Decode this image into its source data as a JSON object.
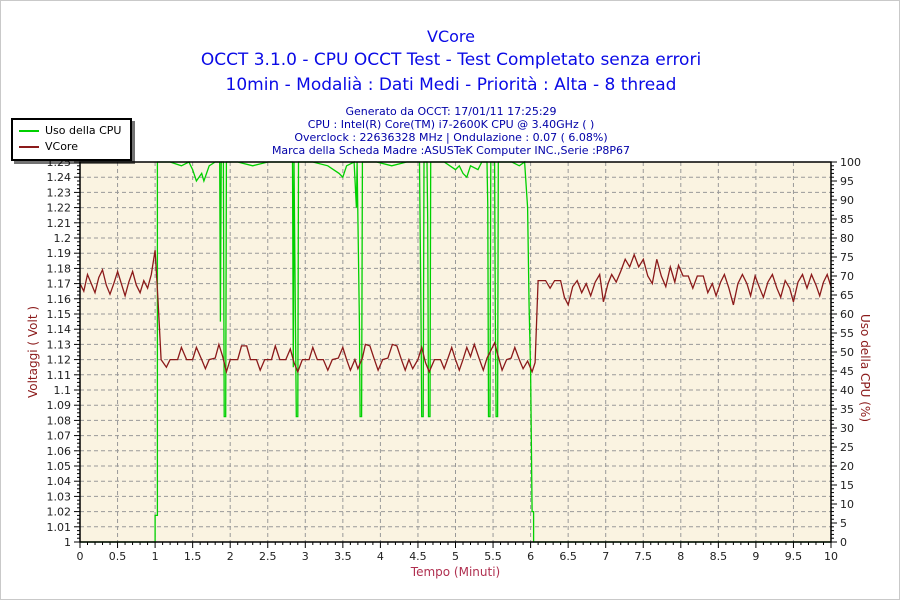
{
  "header": {
    "title": "VCore",
    "subtitle1": "OCCT 3.1.0 - CPU OCCT Test - Test Completato senza errori",
    "subtitle2": "10min - Modalià : Dati Medi - Priorità : Alta - 8 thread",
    "info_lines": [
      "Generato da OCCT: 17/01/11 17:25:29",
      "CPU : Intel(R) Core(TM) i7-2600K CPU @ 3.40GHz (  )",
      "Overclock : 22636328 MHz | Ondulazione : 0.07 ( 6.08%)",
      "Marca della Scheda Madre :ASUSTeK Computer INC.,Serie :P8P67"
    ]
  },
  "colors": {
    "title_blue": "#0a0ae6",
    "info_blue": "#0000a8",
    "plot_bg": "#faf3e1",
    "grid": "#999999",
    "axis": "#000000",
    "tick_text": "#202020",
    "axis_label_red": "#8b1a1a",
    "xlabel_red": "#b03050",
    "cpu_green": "#00d000",
    "vcore_red": "#8b1a1a"
  },
  "legend": {
    "items": [
      {
        "label": "Uso della CPU",
        "color": "#00d000"
      },
      {
        "label": "VCore",
        "color": "#8b1a1a"
      }
    ]
  },
  "chart_data": {
    "type": "line",
    "title": "VCore",
    "xlabel": "Tempo (Minuti)",
    "ylabel_left": "Voltaggi ( Volt )",
    "ylabel_right": "Uso della CPU (%)",
    "xlim": [
      0,
      10
    ],
    "ylim_left": [
      1.0,
      1.25
    ],
    "ylim_right": [
      0,
      100
    ],
    "x_major_step": 0.5,
    "x_minor_step": 0.1,
    "yleft_major_step": 0.01,
    "yright_major_step": 5,
    "grid": "dashed",
    "legend_position": "top-left",
    "series": [
      {
        "name": "Uso della CPU",
        "axis": "right",
        "color": "#00d000",
        "points": [
          [
            0,
            0
          ],
          [
            0.97,
            0
          ],
          [
            1.0,
            0
          ],
          [
            1.0,
            7
          ],
          [
            1.03,
            7
          ],
          [
            1.03,
            100
          ],
          [
            1.2,
            100
          ],
          [
            1.35,
            99
          ],
          [
            1.45,
            100
          ],
          [
            1.5,
            98
          ],
          [
            1.55,
            95
          ],
          [
            1.62,
            97
          ],
          [
            1.65,
            95
          ],
          [
            1.72,
            99
          ],
          [
            1.8,
            100
          ],
          [
            1.86,
            100
          ],
          [
            1.87,
            58
          ],
          [
            1.88,
            100
          ],
          [
            1.91,
            100
          ],
          [
            1.92,
            33
          ],
          [
            1.94,
            33
          ],
          [
            1.95,
            100
          ],
          [
            2.1,
            100
          ],
          [
            2.3,
            99
          ],
          [
            2.5,
            100
          ],
          [
            2.7,
            100
          ],
          [
            2.83,
            100
          ],
          [
            2.84,
            46
          ],
          [
            2.85,
            100
          ],
          [
            2.88,
            33
          ],
          [
            2.9,
            33
          ],
          [
            2.91,
            100
          ],
          [
            3.1,
            100
          ],
          [
            3.3,
            99
          ],
          [
            3.45,
            97
          ],
          [
            3.5,
            96
          ],
          [
            3.55,
            99
          ],
          [
            3.65,
            100
          ],
          [
            3.68,
            88
          ],
          [
            3.69,
            100
          ],
          [
            3.72,
            58
          ],
          [
            3.73,
            33
          ],
          [
            3.75,
            33
          ],
          [
            3.76,
            100
          ],
          [
            3.95,
            100
          ],
          [
            4.15,
            99
          ],
          [
            4.35,
            100
          ],
          [
            4.52,
            100
          ],
          [
            4.54,
            60
          ],
          [
            4.55,
            33
          ],
          [
            4.57,
            33
          ],
          [
            4.58,
            100
          ],
          [
            4.62,
            100
          ],
          [
            4.63,
            85
          ],
          [
            4.64,
            33
          ],
          [
            4.66,
            33
          ],
          [
            4.67,
            100
          ],
          [
            4.85,
            100
          ],
          [
            5.0,
            98
          ],
          [
            5.05,
            99
          ],
          [
            5.1,
            97
          ],
          [
            5.15,
            96
          ],
          [
            5.2,
            99
          ],
          [
            5.3,
            98
          ],
          [
            5.35,
            100
          ],
          [
            5.42,
            100
          ],
          [
            5.43,
            88
          ],
          [
            5.44,
            33
          ],
          [
            5.46,
            33
          ],
          [
            5.47,
            100
          ],
          [
            5.52,
            100
          ],
          [
            5.53,
            60
          ],
          [
            5.54,
            33
          ],
          [
            5.56,
            33
          ],
          [
            5.57,
            100
          ],
          [
            5.75,
            100
          ],
          [
            5.85,
            99
          ],
          [
            5.92,
            100
          ],
          [
            5.96,
            88
          ],
          [
            5.98,
            62
          ],
          [
            6.0,
            45
          ],
          [
            6.02,
            8
          ],
          [
            6.04,
            8
          ],
          [
            6.04,
            0
          ],
          [
            10,
            0
          ]
        ]
      },
      {
        "name": "VCore",
        "axis": "left",
        "color": "#8b1a1a",
        "points": [
          [
            0,
            1.17
          ],
          [
            0.05,
            1.165
          ],
          [
            0.1,
            1.176
          ],
          [
            0.15,
            1.17
          ],
          [
            0.2,
            1.164
          ],
          [
            0.25,
            1.174
          ],
          [
            0.3,
            1.179
          ],
          [
            0.35,
            1.169
          ],
          [
            0.4,
            1.163
          ],
          [
            0.45,
            1.17
          ],
          [
            0.5,
            1.178
          ],
          [
            0.55,
            1.17
          ],
          [
            0.6,
            1.162
          ],
          [
            0.65,
            1.171
          ],
          [
            0.7,
            1.178
          ],
          [
            0.75,
            1.169
          ],
          [
            0.8,
            1.164
          ],
          [
            0.85,
            1.172
          ],
          [
            0.9,
            1.167
          ],
          [
            0.95,
            1.176
          ],
          [
            1.0,
            1.192
          ],
          [
            1.04,
            1.158
          ],
          [
            1.08,
            1.12
          ],
          [
            1.15,
            1.115
          ],
          [
            1.2,
            1.12
          ],
          [
            1.3,
            1.12
          ],
          [
            1.35,
            1.128
          ],
          [
            1.42,
            1.12
          ],
          [
            1.5,
            1.12
          ],
          [
            1.55,
            1.128
          ],
          [
            1.62,
            1.12
          ],
          [
            1.67,
            1.114
          ],
          [
            1.72,
            1.12
          ],
          [
            1.8,
            1.121
          ],
          [
            1.85,
            1.13
          ],
          [
            1.9,
            1.122
          ],
          [
            1.95,
            1.112
          ],
          [
            2.0,
            1.12
          ],
          [
            2.1,
            1.12
          ],
          [
            2.15,
            1.129
          ],
          [
            2.22,
            1.129
          ],
          [
            2.27,
            1.12
          ],
          [
            2.35,
            1.12
          ],
          [
            2.4,
            1.113
          ],
          [
            2.46,
            1.12
          ],
          [
            2.55,
            1.12
          ],
          [
            2.6,
            1.129
          ],
          [
            2.66,
            1.12
          ],
          [
            2.74,
            1.12
          ],
          [
            2.8,
            1.127
          ],
          [
            2.85,
            1.118
          ],
          [
            2.9,
            1.112
          ],
          [
            2.96,
            1.12
          ],
          [
            3.05,
            1.12
          ],
          [
            3.1,
            1.128
          ],
          [
            3.16,
            1.12
          ],
          [
            3.24,
            1.12
          ],
          [
            3.3,
            1.113
          ],
          [
            3.36,
            1.12
          ],
          [
            3.44,
            1.121
          ],
          [
            3.5,
            1.128
          ],
          [
            3.55,
            1.12
          ],
          [
            3.6,
            1.113
          ],
          [
            3.66,
            1.12
          ],
          [
            3.7,
            1.114
          ],
          [
            3.76,
            1.121
          ],
          [
            3.8,
            1.13
          ],
          [
            3.86,
            1.129
          ],
          [
            3.92,
            1.12
          ],
          [
            3.97,
            1.113
          ],
          [
            4.03,
            1.12
          ],
          [
            4.1,
            1.121
          ],
          [
            4.16,
            1.13
          ],
          [
            4.22,
            1.129
          ],
          [
            4.28,
            1.12
          ],
          [
            4.33,
            1.113
          ],
          [
            4.38,
            1.12
          ],
          [
            4.43,
            1.114
          ],
          [
            4.5,
            1.12
          ],
          [
            4.55,
            1.128
          ],
          [
            4.6,
            1.118
          ],
          [
            4.65,
            1.112
          ],
          [
            4.72,
            1.12
          ],
          [
            4.8,
            1.12
          ],
          [
            4.85,
            1.114
          ],
          [
            4.9,
            1.121
          ],
          [
            4.95,
            1.128
          ],
          [
            5.0,
            1.12
          ],
          [
            5.05,
            1.113
          ],
          [
            5.1,
            1.12
          ],
          [
            5.15,
            1.128
          ],
          [
            5.2,
            1.122
          ],
          [
            5.25,
            1.13
          ],
          [
            5.32,
            1.12
          ],
          [
            5.37,
            1.113
          ],
          [
            5.42,
            1.121
          ],
          [
            5.47,
            1.126
          ],
          [
            5.52,
            1.131
          ],
          [
            5.57,
            1.122
          ],
          [
            5.62,
            1.113
          ],
          [
            5.68,
            1.12
          ],
          [
            5.74,
            1.121
          ],
          [
            5.79,
            1.128
          ],
          [
            5.85,
            1.12
          ],
          [
            5.9,
            1.114
          ],
          [
            5.96,
            1.119
          ],
          [
            6.02,
            1.112
          ],
          [
            6.06,
            1.118
          ],
          [
            6.1,
            1.172
          ],
          [
            6.2,
            1.172
          ],
          [
            6.26,
            1.167
          ],
          [
            6.32,
            1.172
          ],
          [
            6.4,
            1.172
          ],
          [
            6.45,
            1.161
          ],
          [
            6.5,
            1.156
          ],
          [
            6.56,
            1.168
          ],
          [
            6.62,
            1.172
          ],
          [
            6.68,
            1.164
          ],
          [
            6.74,
            1.17
          ],
          [
            6.8,
            1.162
          ],
          [
            6.86,
            1.171
          ],
          [
            6.92,
            1.176
          ],
          [
            6.97,
            1.158
          ],
          [
            7.03,
            1.17
          ],
          [
            7.08,
            1.176
          ],
          [
            7.14,
            1.171
          ],
          [
            7.2,
            1.178
          ],
          [
            7.26,
            1.186
          ],
          [
            7.32,
            1.181
          ],
          [
            7.38,
            1.189
          ],
          [
            7.44,
            1.181
          ],
          [
            7.5,
            1.186
          ],
          [
            7.56,
            1.175
          ],
          [
            7.62,
            1.17
          ],
          [
            7.68,
            1.186
          ],
          [
            7.74,
            1.175
          ],
          [
            7.8,
            1.168
          ],
          [
            7.86,
            1.181
          ],
          [
            7.92,
            1.171
          ],
          [
            7.97,
            1.182
          ],
          [
            8.03,
            1.175
          ],
          [
            8.1,
            1.175
          ],
          [
            8.16,
            1.167
          ],
          [
            8.22,
            1.175
          ],
          [
            8.3,
            1.175
          ],
          [
            8.36,
            1.164
          ],
          [
            8.42,
            1.17
          ],
          [
            8.47,
            1.162
          ],
          [
            8.53,
            1.171
          ],
          [
            8.58,
            1.176
          ],
          [
            8.64,
            1.167
          ],
          [
            8.7,
            1.156
          ],
          [
            8.76,
            1.17
          ],
          [
            8.82,
            1.176
          ],
          [
            8.88,
            1.17
          ],
          [
            8.93,
            1.162
          ],
          [
            8.99,
            1.175
          ],
          [
            9.05,
            1.167
          ],
          [
            9.1,
            1.161
          ],
          [
            9.16,
            1.171
          ],
          [
            9.22,
            1.176
          ],
          [
            9.28,
            1.167
          ],
          [
            9.33,
            1.161
          ],
          [
            9.39,
            1.172
          ],
          [
            9.45,
            1.167
          ],
          [
            9.5,
            1.158
          ],
          [
            9.56,
            1.171
          ],
          [
            9.62,
            1.176
          ],
          [
            9.68,
            1.167
          ],
          [
            9.74,
            1.176
          ],
          [
            9.8,
            1.169
          ],
          [
            9.85,
            1.162
          ],
          [
            9.9,
            1.171
          ],
          [
            9.95,
            1.176
          ],
          [
            10,
            1.168
          ]
        ]
      }
    ]
  }
}
